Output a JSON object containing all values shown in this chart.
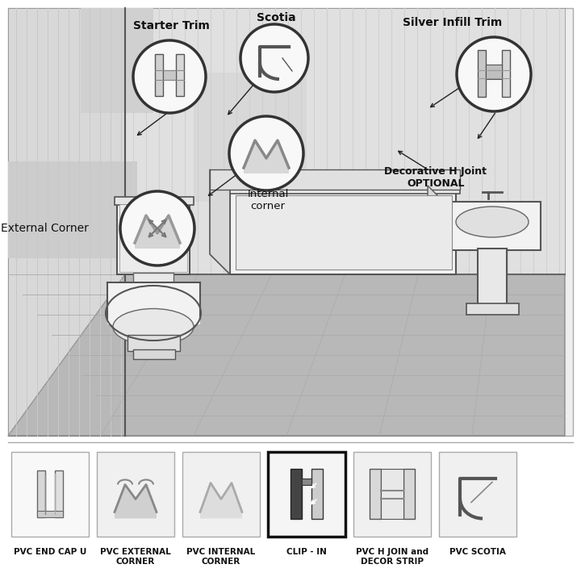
{
  "bg_color": "#ffffff",
  "labels": {
    "starter_trim": "Starter Trim",
    "scotia": "Scotia",
    "silver_infill": "Silver Infill Trim",
    "internal_corner": "Internal\ncorner",
    "external_corner": "External Corner",
    "decorative_h": "Decorative H Joint\nOPTIONAL"
  },
  "bottom_labels": [
    "PVC END CAP U",
    "PVC EXTERNAL\nCORNER",
    "PVC INTERNAL\nCORNER",
    "CLIP - IN",
    "PVC H JOIN and\nDECOR STRIP",
    "PVC SCOTIA"
  ]
}
